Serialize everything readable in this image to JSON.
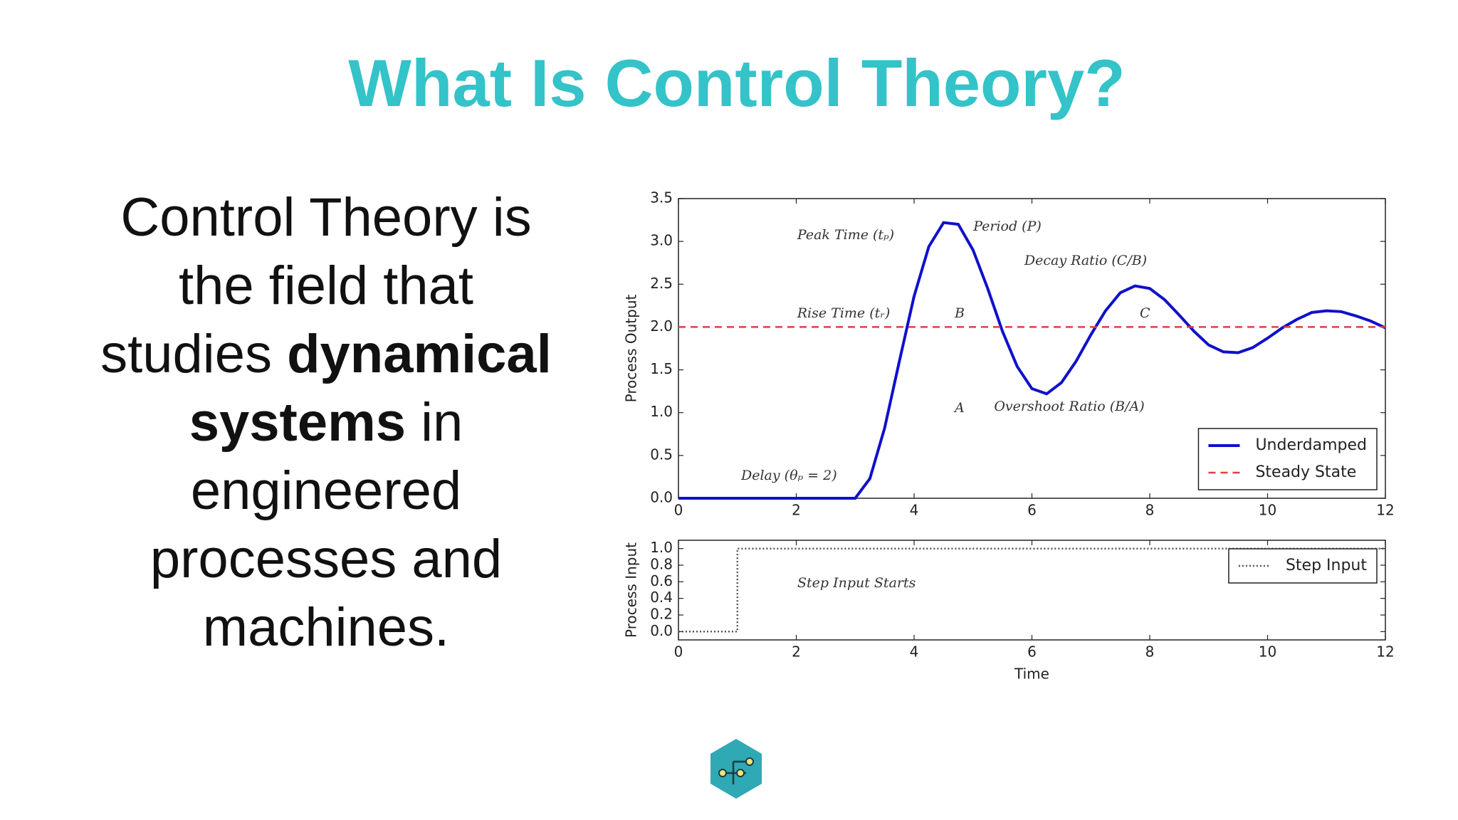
{
  "title": "What Is Control Theory?",
  "body": [
    "Control Theory is the field that studies",
    "dynamical systems",
    "in engineered processes and machines."
  ],
  "chart_data": [
    {
      "type": "line",
      "ylabel": "Process Output",
      "x": [
        0,
        3,
        3.25,
        3.5,
        3.75,
        4,
        4.25,
        4.5,
        4.75,
        5,
        5.25,
        5.5,
        5.75,
        6,
        6.25,
        6.5,
        6.75,
        7,
        7.25,
        7.5,
        7.75,
        8,
        8.25,
        8.5,
        8.75,
        9,
        9.25,
        9.5,
        9.75,
        10,
        10.25,
        10.5,
        10.75,
        11,
        11.25,
        11.5,
        11.75,
        12
      ],
      "series": [
        {
          "name": "Underdamped",
          "color": "#1010cc",
          "linestyle": "solid",
          "values": [
            0,
            0,
            0.23,
            0.82,
            1.6,
            2.36,
            2.94,
            3.22,
            3.2,
            2.9,
            2.45,
            1.95,
            1.54,
            1.28,
            1.22,
            1.35,
            1.6,
            1.91,
            2.19,
            2.4,
            2.48,
            2.45,
            2.32,
            2.14,
            1.95,
            1.79,
            1.71,
            1.7,
            1.76,
            1.87,
            1.99,
            2.09,
            2.17,
            2.19,
            2.18,
            2.13,
            2.07,
            1.99
          ]
        },
        {
          "name": "Steady State",
          "color": "#e04040",
          "linestyle": "dashed",
          "values": [
            2,
            2,
            2,
            2,
            2,
            2,
            2,
            2,
            2,
            2,
            2,
            2,
            2,
            2,
            2,
            2,
            2,
            2,
            2,
            2,
            2,
            2,
            2,
            2,
            2,
            2,
            2,
            2,
            2,
            2,
            2,
            2,
            2,
            2,
            2,
            2,
            2,
            2
          ]
        }
      ],
      "xlim": [
        0,
        12
      ],
      "xticks": [
        0,
        2,
        4,
        6,
        8,
        10,
        12
      ],
      "ylim": [
        0,
        3.5
      ],
      "yticks": [
        {
          "value": 0,
          "label": "0.0"
        },
        0.5,
        {
          "value": 1,
          "label": "1.0"
        },
        1.5,
        {
          "value": 2,
          "label": "2.0"
        },
        2.5,
        {
          "value": 3,
          "label": "3.0"
        },
        3.5
      ],
      "legend": "lower right",
      "annotations": [
        "Peak Time (tₚ)",
        "Period (P)",
        "Decay Ratio (C/B)",
        "Rise Time (tᵣ)",
        "B",
        "C",
        "A",
        "Overshoot Ratio (B/A)",
        "Delay (θₚ = 2)"
      ]
    },
    {
      "type": "line",
      "xlabel": "Time",
      "ylabel": "Process Input",
      "x": [
        0,
        1,
        1,
        12
      ],
      "series": [
        {
          "name": "Step Input",
          "color": "#555555",
          "linestyle": "dotted",
          "values": [
            0,
            0,
            1,
            1
          ]
        }
      ],
      "xlim": [
        0,
        12
      ],
      "xticks": [
        0,
        2,
        4,
        6,
        8,
        10,
        12
      ],
      "ylim": [
        -0.1,
        1.1
      ],
      "yticks": [
        {
          "value": 0,
          "label": "0.0"
        },
        0.2,
        0.4,
        0.6,
        0.8,
        {
          "value": 1,
          "label": "1.0"
        }
      ],
      "legend": "upper right",
      "annotations": [
        "Step Input Starts"
      ]
    }
  ]
}
